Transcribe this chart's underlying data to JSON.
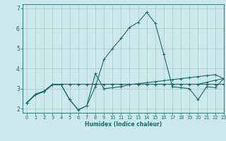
{
  "xlabel": "Humidex (Indice chaleur)",
  "bg_color": "#cce8ec",
  "grid_color": "#a8cccc",
  "line_color": "#1a6b6b",
  "xlim": [
    -0.5,
    23
  ],
  "ylim": [
    1.8,
    7.2
  ],
  "yticks": [
    2,
    3,
    4,
    5,
    6,
    7
  ],
  "xticks": [
    0,
    1,
    2,
    3,
    4,
    5,
    6,
    7,
    8,
    9,
    10,
    11,
    12,
    13,
    14,
    15,
    16,
    17,
    18,
    19,
    20,
    21,
    22,
    23
  ],
  "series": [
    [
      2.3,
      2.7,
      2.85,
      3.2,
      3.2,
      2.45,
      1.95,
      2.15,
      3.75,
      3.0,
      3.05,
      3.1,
      3.2,
      3.25,
      3.3,
      3.35,
      3.4,
      3.45,
      3.5,
      3.55,
      3.6,
      3.65,
      3.7,
      3.5
    ],
    [
      2.3,
      2.7,
      2.85,
      3.2,
      3.2,
      2.45,
      1.95,
      2.15,
      3.1,
      4.45,
      5.0,
      5.5,
      6.05,
      6.3,
      6.8,
      6.25,
      4.7,
      3.1,
      3.05,
      3.0,
      2.45,
      3.1,
      3.05,
      3.5
    ],
    [
      2.3,
      2.72,
      2.88,
      3.22,
      3.22,
      3.22,
      3.22,
      3.22,
      3.22,
      3.22,
      3.22,
      3.22,
      3.22,
      3.22,
      3.22,
      3.22,
      3.22,
      3.22,
      3.22,
      3.22,
      3.22,
      3.22,
      3.22,
      3.22
    ],
    [
      2.3,
      2.72,
      2.88,
      3.22,
      3.22,
      3.22,
      3.22,
      3.22,
      3.22,
      3.22,
      3.22,
      3.22,
      3.22,
      3.22,
      3.22,
      3.22,
      3.22,
      3.22,
      3.22,
      3.22,
      3.22,
      3.32,
      3.42,
      3.5
    ]
  ]
}
